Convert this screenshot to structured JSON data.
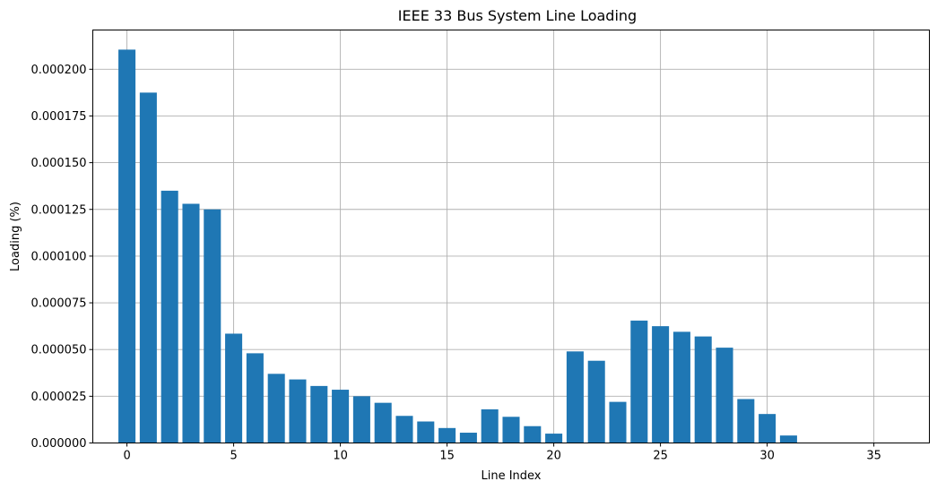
{
  "chart_data": {
    "type": "bar",
    "title": "IEEE 33 Bus System Line Loading",
    "xlabel": "Line Index",
    "ylabel": "Loading (%)",
    "xlim": [
      -1.6,
      37.6
    ],
    "ylim": [
      0,
      0.000221
    ],
    "xticks": [
      0,
      5,
      10,
      15,
      20,
      25,
      30,
      35
    ],
    "yticks": [
      0,
      2.5e-05,
      5e-05,
      7.5e-05,
      0.0001,
      0.000125,
      0.00015,
      0.000175,
      0.0002
    ],
    "ytick_labels": [
      "0.000000",
      "0.000025",
      "0.000050",
      "0.000075",
      "0.000100",
      "0.000125",
      "0.000150",
      "0.000175",
      "0.000200"
    ],
    "grid": true,
    "bar_color": "#1f77b4",
    "x": [
      0,
      1,
      2,
      3,
      4,
      5,
      6,
      7,
      8,
      9,
      10,
      11,
      12,
      13,
      14,
      15,
      16,
      17,
      18,
      19,
      20,
      21,
      22,
      23,
      24,
      25,
      26,
      27,
      28,
      29,
      30,
      31,
      32,
      33,
      34,
      35,
      36
    ],
    "values": [
      0.0002105,
      0.0001875,
      0.000135,
      0.000128,
      0.000125,
      5.85e-05,
      4.8e-05,
      3.7e-05,
      3.4e-05,
      3.05e-05,
      2.85e-05,
      2.5e-05,
      2.15e-05,
      1.45e-05,
      1.15e-05,
      8e-06,
      5.5e-06,
      1.8e-05,
      1.4e-05,
      9e-06,
      5e-06,
      4.9e-05,
      4.4e-05,
      2.2e-05,
      6.55e-05,
      6.25e-05,
      5.95e-05,
      5.7e-05,
      5.1e-05,
      2.35e-05,
      1.55e-05,
      4e-06,
      0,
      0,
      0,
      0,
      0
    ]
  }
}
